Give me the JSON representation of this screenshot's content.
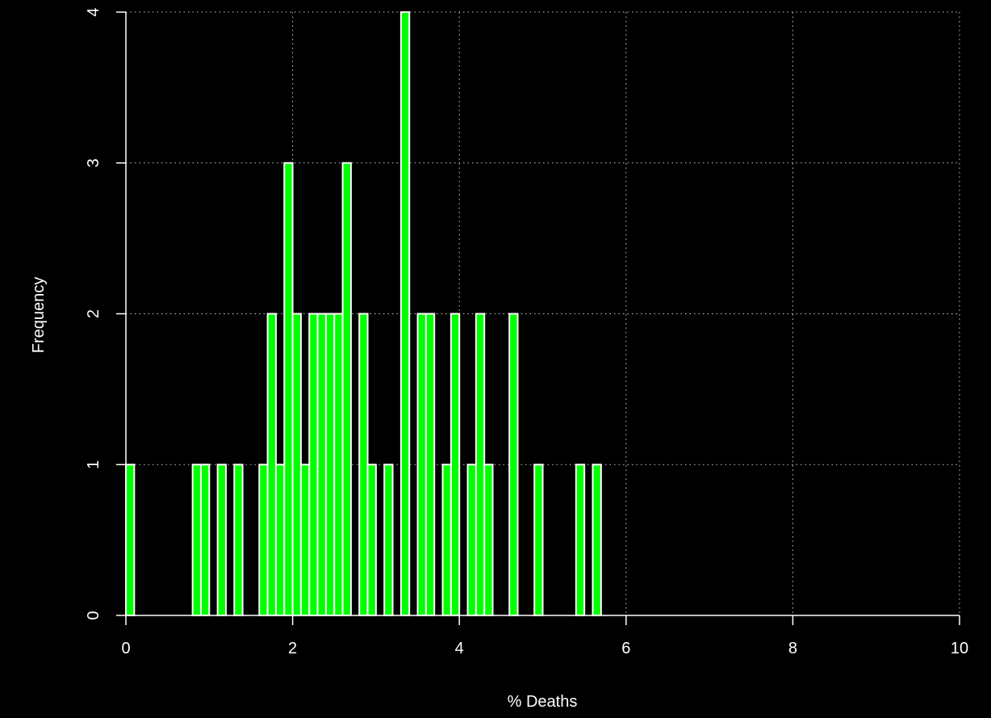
{
  "chart_data": {
    "type": "bar",
    "title": "",
    "xlabel": "% Deaths",
    "ylabel": "Frequency",
    "xlim": [
      0,
      10
    ],
    "ylim": [
      0,
      4
    ],
    "xticks": [
      "0",
      "2",
      "4",
      "6",
      "8",
      "10"
    ],
    "yticks": [
      "0",
      "1",
      "2",
      "3",
      "4"
    ],
    "grid": true,
    "bin_width": 0.1,
    "bin_starts": [
      0.0,
      0.1,
      0.2,
      0.3,
      0.4,
      0.5,
      0.6,
      0.7,
      0.8,
      0.9,
      1.0,
      1.1,
      1.2,
      1.3,
      1.4,
      1.5,
      1.6,
      1.7,
      1.8,
      1.9,
      2.0,
      2.1,
      2.2,
      2.3,
      2.4,
      2.5,
      2.6,
      2.7,
      2.8,
      2.9,
      3.0,
      3.1,
      3.2,
      3.3,
      3.4,
      3.5,
      3.6,
      3.7,
      3.8,
      3.9,
      4.0,
      4.1,
      4.2,
      4.3,
      4.4,
      4.5,
      4.6,
      4.7,
      4.8,
      4.9,
      5.0,
      5.1,
      5.2,
      5.3,
      5.4,
      5.5,
      5.6,
      5.7,
      5.8,
      5.9,
      6.0,
      6.1,
      6.2,
      6.3,
      6.4,
      6.5,
      6.6,
      6.7,
      6.8,
      6.9,
      7.0,
      7.1,
      7.2,
      7.3,
      7.4,
      7.5,
      7.6,
      7.7,
      7.8,
      7.9,
      8.0,
      8.1,
      8.2,
      8.3,
      8.4,
      8.5,
      8.6,
      8.7,
      8.8,
      8.9,
      9.0,
      9.1,
      9.2,
      9.3,
      9.4,
      9.5,
      9.6,
      9.7,
      9.8,
      9.9
    ],
    "counts": [
      1,
      0,
      0,
      0,
      0,
      0,
      0,
      0,
      1,
      1,
      0,
      1,
      0,
      1,
      0,
      0,
      1,
      2,
      1,
      3,
      2,
      1,
      2,
      2,
      2,
      2,
      3,
      0,
      2,
      1,
      0,
      1,
      0,
      4,
      0,
      2,
      2,
      0,
      1,
      2,
      0,
      1,
      2,
      1,
      0,
      0,
      2,
      0,
      0,
      1,
      0,
      0,
      0,
      0,
      1,
      0,
      1,
      0,
      0,
      0,
      0,
      0,
      0,
      0,
      0,
      0,
      0,
      0,
      0,
      0,
      0,
      0,
      0,
      0,
      0,
      0,
      0,
      0,
      0,
      0,
      0,
      0,
      0,
      0,
      0,
      0,
      0,
      0,
      0,
      0,
      0,
      0,
      0,
      0,
      0,
      0,
      0,
      0,
      0,
      0
    ],
    "colors": {
      "background": "#000000",
      "bar_fill": "#00ff00",
      "bar_border": "#ffffff",
      "axis": "#ffffff",
      "grid": "#cccccc"
    }
  }
}
